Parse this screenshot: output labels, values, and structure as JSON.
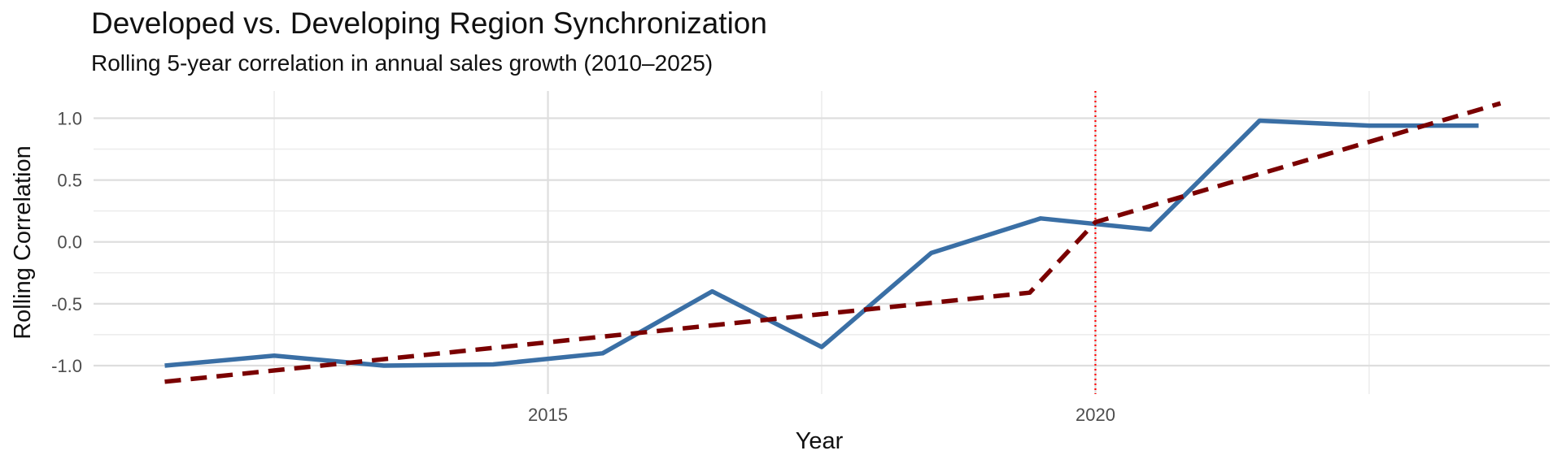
{
  "chart_data": {
    "type": "line",
    "title": "Developed vs. Developing Region Synchronization",
    "subtitle": "Rolling 5-year correlation in annual sales growth (2010–2025)",
    "xlabel": "Year",
    "ylabel": "Rolling Correlation",
    "xlim": [
      2010.85,
      2024.15
    ],
    "ylim": [
      -1.23,
      1.22
    ],
    "x_ticks": [
      2015,
      2020
    ],
    "x_tick_labels": [
      "2015",
      "2020"
    ],
    "y_ticks": [
      1.0,
      0.5,
      0.0,
      -0.5,
      -1.0
    ],
    "y_tick_labels": [
      "1.0",
      "0.5",
      "0.0",
      "-0.5",
      "-1.0"
    ],
    "grid": true,
    "series": [
      {
        "style": "solid",
        "color": "#3a6fa5",
        "x": [
          2011.5,
          2012.5,
          2013.5,
          2014.5,
          2015.5,
          2016.5,
          2017.5,
          2018.5,
          2019.5,
          2020.5,
          2021.5,
          2022.5,
          2023.5
        ],
        "y": [
          -1.0,
          -0.92,
          -1.0,
          -0.99,
          -0.9,
          -0.4,
          -0.85,
          -0.09,
          0.19,
          0.1,
          0.98,
          0.94,
          0.94
        ]
      },
      {
        "style": "dashed",
        "color": "#7a0000",
        "x": [
          2011.5,
          2019.4,
          2020.0,
          2023.7
        ],
        "y": [
          -1.13,
          -0.41,
          0.16,
          1.12
        ]
      }
    ],
    "vline": {
      "x": 2020,
      "color": "#ff0000",
      "style": "dotted"
    }
  }
}
